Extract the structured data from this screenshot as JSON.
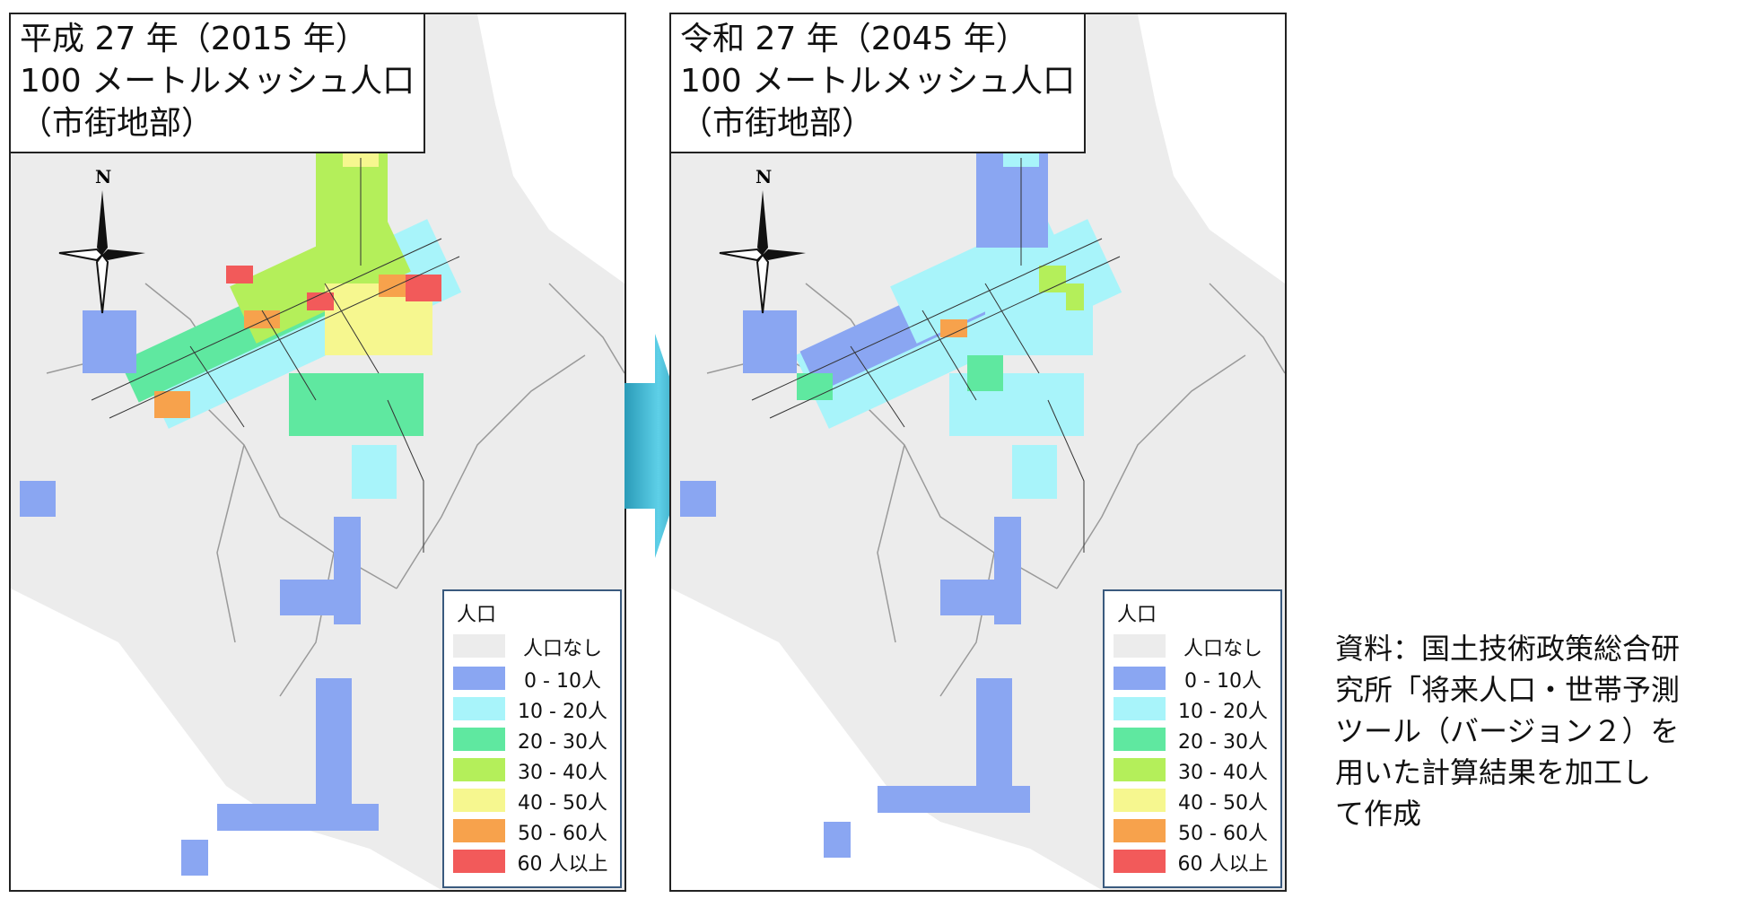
{
  "maps": [
    {
      "id": "panel-2015",
      "title_line1": "平成 27 年（2015 年）",
      "title_line2": "100 メートルメッシュ人口",
      "title_line3": "（市街地部）"
    },
    {
      "id": "panel-2045",
      "title_line1": "令和 27 年（2045 年）",
      "title_line2": "100 メートルメッシュ人口",
      "title_line3": "（市街地部）"
    }
  ],
  "north_label": "N",
  "legend": {
    "title": "人口",
    "items": [
      {
        "label": "人口なし",
        "color": "#ececec"
      },
      {
        "label": "0 - 10人",
        "color": "#8aa6f2"
      },
      {
        "label": "10 - 20人",
        "color": "#a8f4fa"
      },
      {
        "label": "20 - 30人",
        "color": "#5fe8a0"
      },
      {
        "label": "30 - 40人",
        "color": "#b4ef5a"
      },
      {
        "label": "40 - 50人",
        "color": "#f6f78f"
      },
      {
        "label": "50 - 60人",
        "color": "#f7a24c"
      },
      {
        "label": "60 人以上",
        "color": "#f25a5a"
      }
    ]
  },
  "source_note": {
    "line1": "資料：国土技術政策総合研",
    "line2": "究所「将来人口・世帯予測",
    "line3": "ツール（バージョン２）を",
    "line4": "用いた計算結果を加工し",
    "line5": "て作成"
  }
}
